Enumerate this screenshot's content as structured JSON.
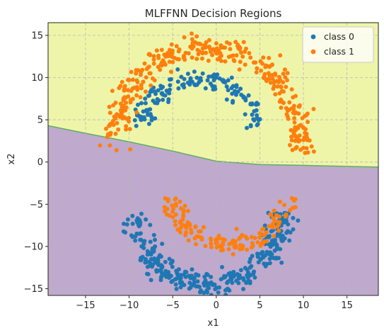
{
  "chart_data": {
    "type": "scatter",
    "title": "MLFFNN Decision Regions",
    "xlabel": "x1",
    "ylabel": "x2",
    "xlim": [
      -19.3,
      18.6
    ],
    "ylim": [
      -15.8,
      16.5
    ],
    "xticks": [
      -15,
      -10,
      -5,
      0,
      5,
      10,
      15
    ],
    "yticks": [
      -15,
      -10,
      -5,
      0,
      5,
      10,
      15
    ],
    "grid": true,
    "legend_position": "top-right",
    "region_colors": {
      "class_0": "#bfa9cc",
      "class_1": "#eef5a9"
    },
    "boundary_color": "#5fae5f",
    "decision_boundary": [
      {
        "x": -19.3,
        "y": 4.3
      },
      {
        "x": -15,
        "y": 3.4
      },
      {
        "x": -10,
        "y": 2.4
      },
      {
        "x": -5,
        "y": 1.3
      },
      {
        "x": 0,
        "y": 0.1
      },
      {
        "x": 5,
        "y": -0.3
      },
      {
        "x": 10,
        "y": -0.4
      },
      {
        "x": 18.6,
        "y": -0.6
      }
    ],
    "series": [
      {
        "name": "class 0",
        "color": "#1f77b4",
        "shape": "inner upper arc + lower ring",
        "generator": {
          "seed": 11,
          "count": 500,
          "segments": [
            {
              "cx": -1,
              "cy": -6,
              "r_mean": 8.5,
              "r_jitter": 1.6,
              "t_start": 180,
              "t_end": 360,
              "weight": 0.7
            },
            {
              "cx": -2,
              "cy": 3,
              "r_mean": 6.8,
              "r_jitter": 1.2,
              "t_start": 10,
              "t_end": 170,
              "weight": 0.3
            }
          ]
        }
      },
      {
        "name": "class 1",
        "color": "#ff7f0e",
        "shape": "outer upper ring + inner lower arc",
        "generator": {
          "seed": 23,
          "count": 500,
          "segments": [
            {
              "cx": -1,
              "cy": 3,
              "r_mean": 10.5,
              "r_jitter": 1.5,
              "t_start": 350,
              "t_end": 190,
              "weight": 0.7
            },
            {
              "cx": 1.5,
              "cy": -3,
              "r_mean": 6.8,
              "r_jitter": 1.2,
              "t_start": 190,
              "t_end": 350,
              "weight": 0.3
            }
          ]
        }
      }
    ]
  }
}
